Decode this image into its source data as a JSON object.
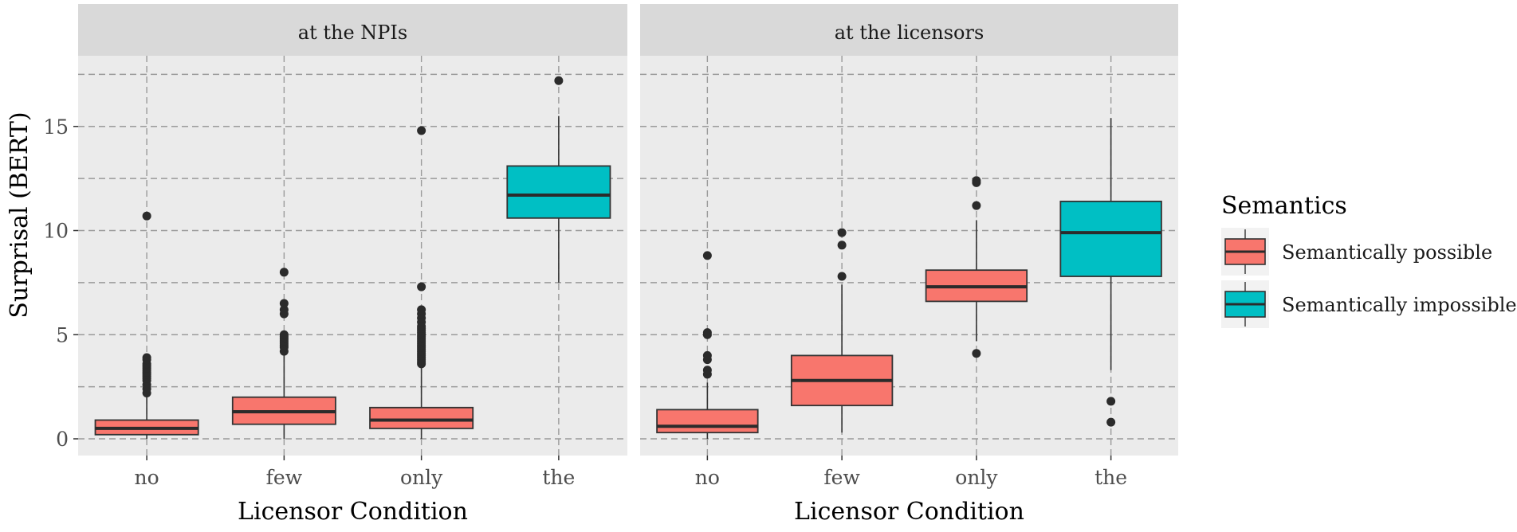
{
  "chart_data": {
    "type": "boxplot",
    "ylabel": "Surprisal (BERT)",
    "xlabel": "Licensor Condition",
    "ylim": [
      -1,
      18
    ],
    "y_ticks": [
      0,
      5,
      10,
      15
    ],
    "categories": [
      "no",
      "few",
      "only",
      "the"
    ],
    "grid": "dashed",
    "legend": {
      "title": "Semantics",
      "position": "right",
      "entries": [
        {
          "label": "Semantically possible",
          "color": "#F8766D"
        },
        {
          "label": "Semantically impossible",
          "color": "#00BFC4"
        }
      ]
    },
    "panels": [
      {
        "strip": "at the NPIs",
        "boxes": [
          {
            "category": "no",
            "group": "Semantically possible",
            "q1": 0.2,
            "median": 0.5,
            "q3": 0.9,
            "whisker_low": 0.0,
            "whisker_high": 2.0,
            "outliers": [
              2.2,
              2.4,
              2.6,
              2.8,
              2.9,
              3.0,
              3.1,
              3.2,
              3.3,
              3.4,
              3.5,
              3.6,
              3.8,
              3.9,
              10.7
            ]
          },
          {
            "category": "few",
            "group": "Semantically possible",
            "q1": 0.7,
            "median": 1.3,
            "q3": 2.0,
            "whisker_low": 0.0,
            "whisker_high": 4.0,
            "outliers": [
              4.2,
              4.4,
              4.5,
              4.6,
              4.7,
              4.8,
              4.9,
              5.0,
              6.0,
              6.2,
              6.5,
              8.0
            ]
          },
          {
            "category": "only",
            "group": "Semantically possible",
            "q1": 0.5,
            "median": 0.9,
            "q3": 1.5,
            "whisker_low": 0.0,
            "whisker_high": 3.4,
            "outliers": [
              3.6,
              3.7,
              3.8,
              3.9,
              4.0,
              4.1,
              4.2,
              4.3,
              4.4,
              4.5,
              4.6,
              4.7,
              4.8,
              4.9,
              5.0,
              5.1,
              5.2,
              5.3,
              5.4,
              5.6,
              5.8,
              6.0,
              6.2,
              7.3,
              14.8
            ]
          },
          {
            "category": "the",
            "group": "Semantically impossible",
            "q1": 10.6,
            "median": 11.7,
            "q3": 13.1,
            "whisker_low": 7.5,
            "whisker_high": 15.5,
            "outliers": [
              17.2
            ]
          }
        ]
      },
      {
        "strip": "at the licensors",
        "boxes": [
          {
            "category": "no",
            "group": "Semantically possible",
            "q1": 0.3,
            "median": 0.6,
            "q3": 1.4,
            "whisker_low": 0.0,
            "whisker_high": 2.7,
            "outliers": [
              3.1,
              3.3,
              3.8,
              4.0,
              5.0,
              5.1,
              8.8
            ]
          },
          {
            "category": "few",
            "group": "Semantically possible",
            "q1": 1.6,
            "median": 2.8,
            "q3": 4.0,
            "whisker_low": 0.3,
            "whisker_high": 7.4,
            "outliers": [
              7.8,
              9.3,
              9.9
            ]
          },
          {
            "category": "only",
            "group": "Semantically possible",
            "q1": 6.6,
            "median": 7.3,
            "q3": 8.1,
            "whisker_low": 4.7,
            "whisker_high": 10.5,
            "outliers": [
              4.1,
              11.2,
              12.3,
              12.4
            ]
          },
          {
            "category": "the",
            "group": "Semantically impossible",
            "q1": 7.8,
            "median": 9.9,
            "q3": 11.4,
            "whisker_low": 3.3,
            "whisker_high": 15.4,
            "outliers": [
              0.8,
              1.8
            ]
          }
        ]
      }
    ]
  }
}
